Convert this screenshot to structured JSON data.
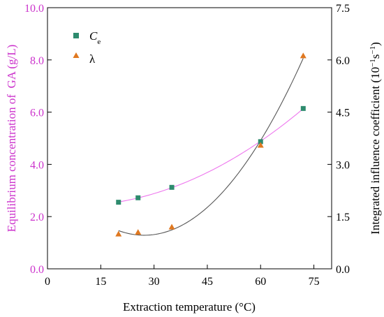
{
  "chart_data": {
    "type": "scatter",
    "title": "",
    "xlabel": "Extraction temperature (°C)",
    "xlim": [
      0,
      80
    ],
    "xticks": [
      0,
      15,
      30,
      45,
      60,
      75
    ],
    "x_tick_labels": [
      "0",
      "15",
      "30",
      "45",
      "60",
      "75"
    ],
    "y_left": {
      "label": "Equilibrium concentration of  GA (g/L)",
      "ylim": [
        0,
        10
      ],
      "ticks": [
        0,
        2,
        4,
        6,
        8,
        10
      ],
      "tick_labels": [
        "0.0",
        "2.0",
        "4.0",
        "6.0",
        "8.0",
        "10.0"
      ],
      "color": "#cc33cc"
    },
    "y_right": {
      "label": "Integrated influence coefficient (10⁻¹s⁻¹)",
      "ylim": [
        0,
        7.5
      ],
      "ticks": [
        0,
        1.5,
        3,
        4.5,
        6,
        7.5
      ],
      "tick_labels": [
        "0.0",
        "1.5",
        "3.0",
        "4.5",
        "6.0",
        "7.5"
      ],
      "color": "#000000"
    },
    "series": [
      {
        "name": "C",
        "name_sub": "e",
        "axis": "left",
        "marker": "square",
        "marker_color": "#2e8b6e",
        "fit_color": "#ee77ee",
        "x": [
          20,
          25.5,
          35,
          60,
          72
        ],
        "y": [
          2.55,
          2.72,
          3.12,
          4.87,
          6.14
        ]
      },
      {
        "name": "λ",
        "axis": "right",
        "marker": "triangle",
        "marker_color": "#e07820",
        "fit_color": "#555555",
        "x": [
          20,
          25.5,
          35,
          60,
          72
        ],
        "y": [
          1.0,
          1.05,
          1.2,
          3.55,
          6.12
        ]
      }
    ],
    "legend_position": "top-left",
    "grid": false
  }
}
